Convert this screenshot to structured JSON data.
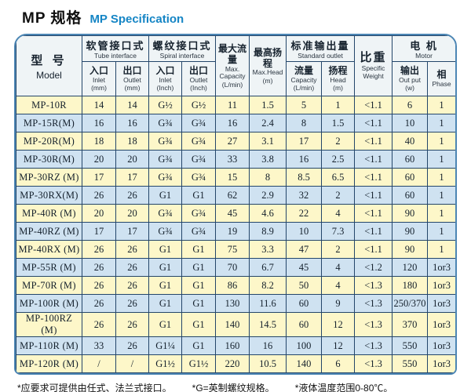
{
  "title": {
    "zh": "MP 规格",
    "en": "MP Specification"
  },
  "colors": {
    "accent_blue": "#1585c5",
    "row_yellow": "#fdf7c9",
    "row_blue": "#cfe2f1",
    "grid_line": "#24466a",
    "outer_border": "#4c86b4",
    "header_bg": "#eff4f6"
  },
  "header": {
    "model": {
      "zh": "型 号",
      "en": "Model"
    },
    "groups": [
      {
        "zh": "软管接口式",
        "en": "Tube interface"
      },
      {
        "zh": "螺纹接口式",
        "en": "Spiral interface"
      },
      {
        "zh": "标准输出量",
        "en": "Standard outlet"
      },
      {
        "zh": "电 机",
        "en": "Motor"
      }
    ],
    "max_capacity": {
      "zh": "最大流量",
      "en1": "Max.",
      "en2": "Capacity",
      "unit": "(L/min)"
    },
    "max_head": {
      "zh": "最高扬程",
      "en": "Max.Head",
      "unit": "(m)"
    },
    "specific_weight": {
      "zh": "比重",
      "en1": "Specific",
      "en2": "Weight"
    },
    "subs": [
      {
        "zh": "入口",
        "en": "Inlet",
        "unit": "(mm)"
      },
      {
        "zh": "出口",
        "en": "Outlet",
        "unit": "(mm)"
      },
      {
        "zh": "入口",
        "en": "Inlet",
        "unit": "(Inch)"
      },
      {
        "zh": "出口",
        "en": "Outlet",
        "unit": "(Inch)"
      },
      {
        "zh": "流量",
        "en": "Capacity",
        "unit": "(L/min)"
      },
      {
        "zh": "扬程",
        "en": "Head",
        "unit": "(m)"
      },
      {
        "zh": "输出",
        "en": "Out put",
        "unit": "(w)"
      },
      {
        "zh": "相",
        "en": "Phase",
        "unit": ""
      }
    ]
  },
  "rows": [
    {
      "model": "MP-10R",
      "cells": [
        "14",
        "14",
        "G½",
        "G½",
        "11",
        "1.5",
        "5",
        "1",
        "<1.1",
        "6",
        "1"
      ]
    },
    {
      "model": "MP-15R(M)",
      "cells": [
        "16",
        "16",
        "G¾",
        "G¾",
        "16",
        "2.4",
        "8",
        "1.5",
        "<1.1",
        "10",
        "1"
      ]
    },
    {
      "model": "MP-20R(M)",
      "cells": [
        "18",
        "18",
        "G¾",
        "G¾",
        "27",
        "3.1",
        "17",
        "2",
        "<1.1",
        "40",
        "1"
      ]
    },
    {
      "model": "MP-30R(M)",
      "cells": [
        "20",
        "20",
        "G¾",
        "G¾",
        "33",
        "3.8",
        "16",
        "2.5",
        "<1.1",
        "60",
        "1"
      ]
    },
    {
      "model": "MP-30RZ (M)",
      "cells": [
        "17",
        "17",
        "G¾",
        "G¾",
        "15",
        "8",
        "8.5",
        "6.5",
        "<1.1",
        "60",
        "1"
      ]
    },
    {
      "model": "MP-30RX(M)",
      "cells": [
        "26",
        "26",
        "G1",
        "G1",
        "62",
        "2.9",
        "32",
        "2",
        "<1.1",
        "60",
        "1"
      ]
    },
    {
      "model": "MP-40R (M)",
      "cells": [
        "20",
        "20",
        "G¾",
        "G¾",
        "45",
        "4.6",
        "22",
        "4",
        "<1.1",
        "90",
        "1"
      ]
    },
    {
      "model": "MP-40RZ (M)",
      "cells": [
        "17",
        "17",
        "G¾",
        "G¾",
        "19",
        "8.9",
        "10",
        "7.3",
        "<1.1",
        "90",
        "1"
      ]
    },
    {
      "model": "MP-40RX (M)",
      "cells": [
        "26",
        "26",
        "G1",
        "G1",
        "75",
        "3.3",
        "47",
        "2",
        "<1.1",
        "90",
        "1"
      ]
    },
    {
      "model": "MP-55R (M)",
      "cells": [
        "26",
        "26",
        "G1",
        "G1",
        "70",
        "6.7",
        "45",
        "4",
        "<1.2",
        "120",
        "1or3"
      ]
    },
    {
      "model": "MP-70R (M)",
      "cells": [
        "26",
        "26",
        "G1",
        "G1",
        "86",
        "8.2",
        "50",
        "4",
        "<1.3",
        "180",
        "1or3"
      ]
    },
    {
      "model": "MP-100R (M)",
      "cells": [
        "26",
        "26",
        "G1",
        "G1",
        "130",
        "11.6",
        "60",
        "9",
        "<1.3",
        "250/370",
        "1or3"
      ]
    },
    {
      "model": "MP-100RZ (M)",
      "cells": [
        "26",
        "26",
        "G1",
        "G1",
        "140",
        "14.5",
        "60",
        "12",
        "<1.3",
        "370",
        "1or3"
      ]
    },
    {
      "model": "MP-110R (M)",
      "cells": [
        "33",
        "26",
        "G1¼",
        "G1",
        "160",
        "16",
        "100",
        "12",
        "<1.3",
        "550",
        "1or3"
      ]
    },
    {
      "model": "MP-120R (M)",
      "cells": [
        "/",
        "/",
        "G1½",
        "G1½",
        "220",
        "10.5",
        "140",
        "6",
        "<1.3",
        "550",
        "1or3"
      ]
    }
  ],
  "footnotes": [
    "*应要求可提供由任式、法兰式接口。",
    "*G=英制螺纹规格。",
    "*液体温度范围0-80℃。"
  ]
}
